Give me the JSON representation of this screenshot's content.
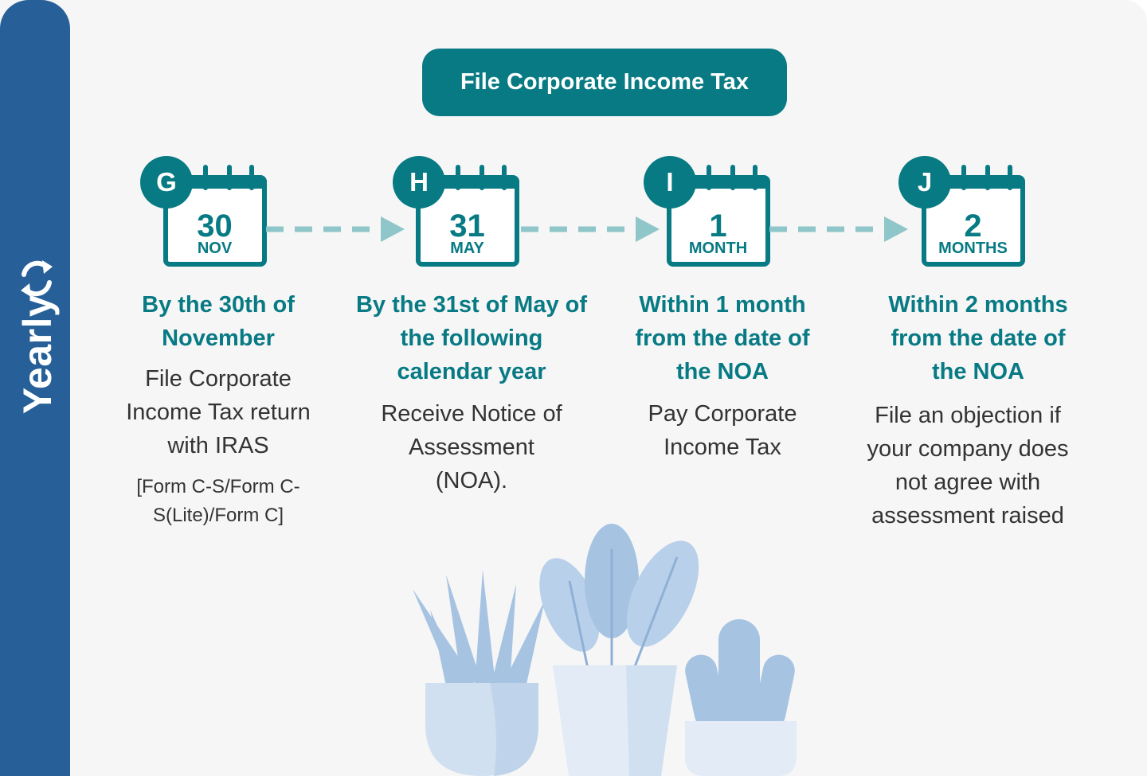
{
  "sidebar": {
    "label": "Yearly",
    "icon": "cycle-icon"
  },
  "title": "File Corporate Income Tax",
  "colors": {
    "teal": "#077a83",
    "blue": "#276098",
    "connector": "#8ec6c9",
    "text": "#333333"
  },
  "steps": [
    {
      "letter": "G",
      "number": "30",
      "unit": "NOV",
      "heading": "By the 30th of November",
      "description": "File Corporate Income Tax return with IRAS",
      "note": "[Form C-S/Form C-S(Lite)/Form C]"
    },
    {
      "letter": "H",
      "number": "31",
      "unit": "MAY",
      "heading": "By the 31st of May of the following calendar year",
      "description": "Receive Notice of Assessment (NOA)."
    },
    {
      "letter": "I",
      "number": "1",
      "unit": "MONTH",
      "heading": "Within 1 month from the date of the NOA",
      "description": "Pay Corporate Income Tax"
    },
    {
      "letter": "J",
      "number": "2",
      "unit": "MONTHS",
      "heading": "Within 2 months from the date of the NOA",
      "description": "File an objection if your company does not agree with assessment raised"
    }
  ]
}
